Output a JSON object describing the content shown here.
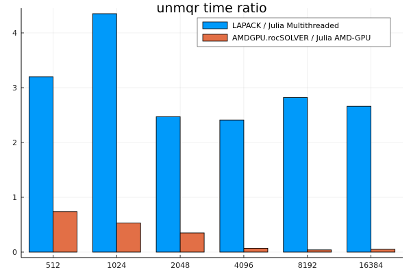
{
  "chart_data": {
    "type": "bar",
    "title": "unmqr time ratio",
    "xlabel": "",
    "ylabel": "",
    "categories": [
      "512",
      "1024",
      "2048",
      "4096",
      "8192",
      "16384"
    ],
    "series": [
      {
        "name": "LAPACK / Julia Multithreaded",
        "color": "#009AFA",
        "values": [
          3.2,
          4.35,
          2.47,
          2.41,
          2.82,
          2.66
        ]
      },
      {
        "name": "AMDGPU.rocSOLVER / Julia  AMD-GPU",
        "color": "#E26F46",
        "values": [
          0.74,
          0.53,
          0.35,
          0.07,
          0.04,
          0.05
        ]
      }
    ],
    "ylim": [
      -0.1,
      4.45
    ],
    "yticks": [
      0,
      1,
      2,
      3,
      4
    ],
    "grid": true,
    "legend_position": "top-right"
  }
}
